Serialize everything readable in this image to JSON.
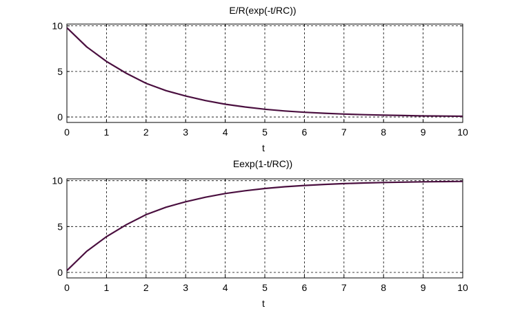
{
  "chart_data": [
    {
      "type": "line",
      "title": "E/R(exp(-t/RC))",
      "xlabel": "t",
      "ylabel": "",
      "xlim": [
        0,
        10
      ],
      "ylim": [
        -0.6,
        10.2
      ],
      "xticks": [
        "0",
        "1",
        "2",
        "3",
        "4",
        "5",
        "6",
        "7",
        "8",
        "9",
        "10"
      ],
      "yticks": [
        "0",
        "5",
        "10"
      ],
      "grid": true,
      "series": [
        {
          "color": "#4a0f3f",
          "x": [
            0,
            0.5,
            1,
            1.5,
            2,
            2.5,
            3,
            3.5,
            4,
            4.5,
            5,
            5.5,
            6,
            6.5,
            7,
            7.5,
            8,
            8.5,
            9,
            9.5,
            10
          ],
          "y": [
            9.8,
            7.7,
            6.1,
            4.8,
            3.7,
            2.9,
            2.3,
            1.8,
            1.4,
            1.1,
            0.85,
            0.66,
            0.52,
            0.41,
            0.32,
            0.25,
            0.2,
            0.16,
            0.12,
            0.1,
            0.08
          ]
        }
      ]
    },
    {
      "type": "line",
      "title": "Eexp(1-t/RC))",
      "xlabel": "t",
      "ylabel": "",
      "xlim": [
        0,
        10
      ],
      "ylim": [
        -0.6,
        10.2
      ],
      "xticks": [
        "0",
        "1",
        "2",
        "3",
        "4",
        "5",
        "6",
        "7",
        "8",
        "9",
        "10"
      ],
      "yticks": [
        "0",
        "5",
        "10"
      ],
      "grid": true,
      "series": [
        {
          "color": "#4a0f3f",
          "x": [
            0,
            0.5,
            1,
            1.5,
            2,
            2.5,
            3,
            3.5,
            4,
            4.5,
            5,
            5.5,
            6,
            6.5,
            7,
            7.5,
            8,
            8.5,
            9,
            9.5,
            10
          ],
          "y": [
            0.2,
            2.3,
            3.9,
            5.2,
            6.3,
            7.1,
            7.7,
            8.2,
            8.6,
            8.9,
            9.15,
            9.34,
            9.48,
            9.59,
            9.68,
            9.75,
            9.8,
            9.84,
            9.88,
            9.9,
            9.92
          ]
        }
      ]
    }
  ]
}
